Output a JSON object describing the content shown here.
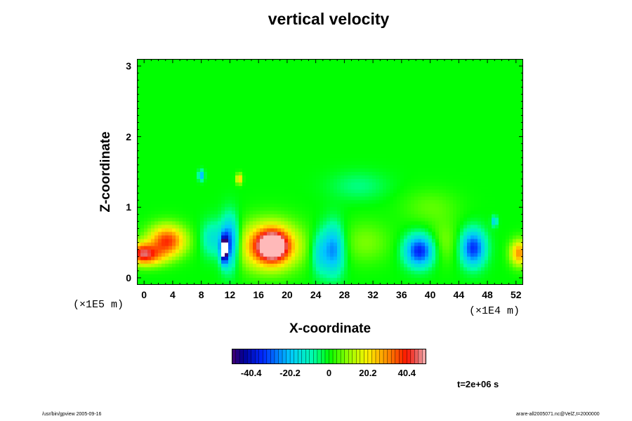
{
  "title": "vertical velocity",
  "chart_data": {
    "type": "heatmap",
    "title": "vertical velocity",
    "xlabel": "X-coordinate",
    "ylabel": "Z-coordinate",
    "x_scale_label": "(×1E4 m)",
    "y_scale_label": "(×1E5 m)",
    "xlim": [
      -1,
      53
    ],
    "ylim": [
      -0.1,
      3.1
    ],
    "x_ticks": [
      0,
      4,
      8,
      12,
      16,
      20,
      24,
      28,
      32,
      36,
      40,
      44,
      48,
      52
    ],
    "x_tick_labels": [
      "0",
      "4",
      "8",
      "12",
      "16",
      "20",
      "24",
      "28",
      "32",
      "36",
      "40",
      "44",
      "48",
      "52"
    ],
    "y_ticks": [
      0,
      1,
      2,
      3
    ],
    "y_tick_labels": [
      "0",
      "1",
      "2",
      "3"
    ],
    "background_value": 0,
    "features": [
      {
        "x": -0.5,
        "z": 0.35,
        "rx": 1.8,
        "rz": 0.15,
        "value": 32
      },
      {
        "x": 3.2,
        "z": 0.52,
        "rx": 2.6,
        "rz": 0.22,
        "value": 38
      },
      {
        "x": 1.0,
        "z": 0.3,
        "rx": 2.2,
        "rz": 0.14,
        "value": 18
      },
      {
        "x": 12.0,
        "z": 0.5,
        "rx": 1.3,
        "rz": 0.35,
        "value": -34
      },
      {
        "x": 11.2,
        "z": 0.4,
        "rx": 0.5,
        "rz": 0.18,
        "value": -52
      },
      {
        "x": 9.5,
        "z": 0.55,
        "rx": 1.5,
        "rz": 0.25,
        "value": -14
      },
      {
        "x": 17.5,
        "z": 0.45,
        "rx": 4.2,
        "rz": 0.33,
        "value": 36
      },
      {
        "x": 18.0,
        "z": 0.45,
        "rx": 2.0,
        "rz": 0.2,
        "value": 44
      },
      {
        "x": 26.5,
        "z": 0.4,
        "rx": 1.5,
        "rz": 0.35,
        "value": -26
      },
      {
        "x": 24.5,
        "z": 0.35,
        "rx": 1.2,
        "rz": 0.3,
        "value": -14
      },
      {
        "x": 31.0,
        "z": 0.5,
        "rx": 3.5,
        "rz": 0.3,
        "value": 8
      },
      {
        "x": 38.5,
        "z": 0.38,
        "rx": 2.0,
        "rz": 0.22,
        "value": -36
      },
      {
        "x": 46.0,
        "z": 0.42,
        "rx": 1.7,
        "rz": 0.25,
        "value": -34
      },
      {
        "x": 42.0,
        "z": 0.5,
        "rx": 2.0,
        "rz": 0.3,
        "value": 8
      },
      {
        "x": 52.5,
        "z": 0.35,
        "rx": 1.3,
        "rz": 0.18,
        "value": 30
      },
      {
        "x": 8.0,
        "z": 1.45,
        "rx": 0.4,
        "rz": 0.07,
        "value": -24
      },
      {
        "x": 13.3,
        "z": 1.4,
        "rx": 0.4,
        "rz": 0.07,
        "value": 30
      },
      {
        "x": 30.0,
        "z": 1.3,
        "rx": 4.0,
        "rz": 0.2,
        "value": -6
      },
      {
        "x": 40.0,
        "z": 1.0,
        "rx": 4.0,
        "rz": 0.25,
        "value": 6
      },
      {
        "x": 49.0,
        "z": 0.8,
        "rx": 0.4,
        "rz": 0.07,
        "value": -20
      }
    ],
    "colorbar": {
      "min": -50.5,
      "max": 50.5,
      "ticks": [
        -40.4,
        -20.2,
        0,
        20.2,
        40.4
      ],
      "tick_labels": [
        "-40.4",
        "-20.2",
        "0",
        "20.2",
        "40.4"
      ]
    },
    "time_label": "t=2e+06 s"
  },
  "footer": {
    "left": "/usr/bin/gpview 2005-09-16",
    "right": "arare-all2005071.nc@VelZ,t=2000000"
  }
}
